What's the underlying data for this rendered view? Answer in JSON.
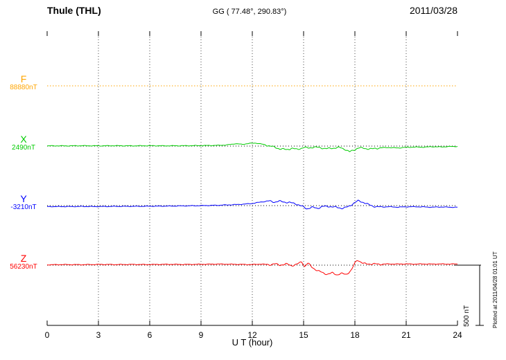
{
  "chart_data": {
    "type": "line",
    "title": "Thule (THL)",
    "subtitle": "GG ( 77.48°, 290.83°)",
    "date": "2011/03/28",
    "xlabel": "U T (hour)",
    "xlim": [
      0,
      24
    ],
    "xticks": [
      0,
      3,
      6,
      9,
      12,
      15,
      18,
      21,
      24
    ],
    "units": "nT",
    "scale_bar": {
      "label": "500 nT",
      "nT": 500
    },
    "plotted_at": "Plotted at 2011/04/28 01:01 UT",
    "grid": "dotted-vertical-every-3h",
    "legend_position": "left-of-traces",
    "series": [
      {
        "name": "F",
        "baseline_label": "88880nT",
        "color": "#ffa500",
        "line_style": "dotted",
        "points": [
          [
            0,
            0
          ],
          [
            24,
            0
          ]
        ]
      },
      {
        "name": "X",
        "baseline_label": "2490nT",
        "color": "#00cc00",
        "line_style": "solid",
        "points": [
          [
            0,
            2
          ],
          [
            1,
            2
          ],
          [
            2,
            3
          ],
          [
            3,
            2
          ],
          [
            4,
            3
          ],
          [
            5,
            2
          ],
          [
            6,
            3
          ],
          [
            7,
            2
          ],
          [
            8,
            3
          ],
          [
            9,
            4
          ],
          [
            10,
            6
          ],
          [
            10.5,
            9
          ],
          [
            11,
            20
          ],
          [
            11.4,
            14
          ],
          [
            11.8,
            22
          ],
          [
            12.2,
            25
          ],
          [
            12.6,
            15
          ],
          [
            13,
            2
          ],
          [
            13.3,
            -10
          ],
          [
            13.6,
            -22
          ],
          [
            14,
            -30
          ],
          [
            14.3,
            -18
          ],
          [
            14.6,
            -28
          ],
          [
            15,
            -12
          ],
          [
            15.3,
            -16
          ],
          [
            15.6,
            -8
          ],
          [
            16,
            -14
          ],
          [
            16.4,
            -22
          ],
          [
            16.8,
            -15
          ],
          [
            17.1,
            -12
          ],
          [
            17.4,
            -25
          ],
          [
            17.7,
            -48
          ],
          [
            17.95,
            -32
          ],
          [
            18.2,
            -14
          ],
          [
            18.6,
            -20
          ],
          [
            19,
            -24
          ],
          [
            19.5,
            -14
          ],
          [
            20,
            -12
          ],
          [
            20.5,
            -16
          ],
          [
            21,
            -10
          ],
          [
            21.5,
            -8
          ],
          [
            22,
            -9
          ],
          [
            22.5,
            -5
          ],
          [
            23,
            -7
          ],
          [
            23.5,
            -4
          ],
          [
            24,
            -3
          ]
        ]
      },
      {
        "name": "Y",
        "baseline_label": "-3210nT",
        "color": "#0000ff",
        "line_style": "solid",
        "points": [
          [
            0,
            -8
          ],
          [
            1,
            -8
          ],
          [
            2,
            -7
          ],
          [
            3,
            -8
          ],
          [
            4,
            -6
          ],
          [
            5,
            -6
          ],
          [
            6,
            -5
          ],
          [
            7,
            -4
          ],
          [
            8,
            -2
          ],
          [
            9,
            0
          ],
          [
            10,
            3
          ],
          [
            11,
            8
          ],
          [
            11.5,
            12
          ],
          [
            12,
            18
          ],
          [
            12.5,
            30
          ],
          [
            13,
            38
          ],
          [
            13.3,
            30
          ],
          [
            13.6,
            36
          ],
          [
            14,
            28
          ],
          [
            14.5,
            18
          ],
          [
            15,
            -12
          ],
          [
            15.2,
            -26
          ],
          [
            15.5,
            -14
          ],
          [
            15.8,
            -22
          ],
          [
            16.1,
            -8
          ],
          [
            16.5,
            -6
          ],
          [
            17,
            -16
          ],
          [
            17.3,
            -22
          ],
          [
            17.6,
            -10
          ],
          [
            18,
            26
          ],
          [
            18.2,
            40
          ],
          [
            18.5,
            28
          ],
          [
            18.8,
            8
          ],
          [
            19.1,
            -6
          ],
          [
            19.5,
            -12
          ],
          [
            20,
            -9
          ],
          [
            20.5,
            -13
          ],
          [
            21,
            -10
          ],
          [
            21.5,
            -9
          ],
          [
            22,
            -11
          ],
          [
            22.5,
            -13
          ],
          [
            23,
            -11
          ],
          [
            23.5,
            -13
          ],
          [
            24,
            -14
          ]
        ]
      },
      {
        "name": "Z",
        "baseline_label": "56230nT",
        "color": "#ff0000",
        "line_style": "solid",
        "points": [
          [
            0,
            3
          ],
          [
            1,
            5
          ],
          [
            2,
            4
          ],
          [
            3,
            6
          ],
          [
            4,
            5
          ],
          [
            5,
            6
          ],
          [
            6,
            5
          ],
          [
            7,
            7
          ],
          [
            8,
            6
          ],
          [
            9,
            7
          ],
          [
            10,
            9
          ],
          [
            11,
            7
          ],
          [
            12,
            5
          ],
          [
            12.5,
            9
          ],
          [
            13,
            3
          ],
          [
            13.3,
            11
          ],
          [
            13.6,
            1
          ],
          [
            14,
            9
          ],
          [
            14.3,
            -4
          ],
          [
            14.6,
            6
          ],
          [
            14.9,
            30
          ],
          [
            15.05,
            -12
          ],
          [
            15.25,
            16
          ],
          [
            15.5,
            -18
          ],
          [
            15.8,
            -45
          ],
          [
            16.1,
            -62
          ],
          [
            16.4,
            -76
          ],
          [
            16.7,
            -64
          ],
          [
            16.95,
            -80
          ],
          [
            17.2,
            -70
          ],
          [
            17.5,
            -76
          ],
          [
            17.8,
            -42
          ],
          [
            18,
            18
          ],
          [
            18.15,
            46
          ],
          [
            18.3,
            30
          ],
          [
            18.5,
            12
          ],
          [
            19,
            10
          ],
          [
            19.5,
            8
          ],
          [
            20,
            10
          ],
          [
            20.5,
            9
          ],
          [
            21,
            10
          ],
          [
            21.5,
            9
          ],
          [
            22,
            10
          ],
          [
            22.5,
            9
          ],
          [
            23,
            10
          ],
          [
            23.5,
            9
          ],
          [
            24,
            10
          ]
        ]
      }
    ]
  }
}
